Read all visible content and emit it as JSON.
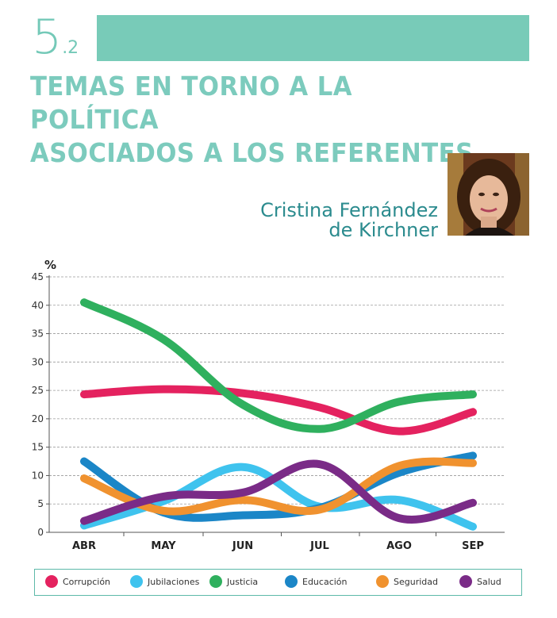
{
  "header": {
    "section_number": "5",
    "section_sub": ".2",
    "title_line1": "TEMAS EN TORNO A LA POLÍTICA",
    "title_line2": "ASOCIADOS A LOS REFERENTES"
  },
  "person": {
    "name_line1": "Cristina Fernández",
    "name_line2": "de Kirchner"
  },
  "chart_data": {
    "type": "line",
    "ylabel": "%",
    "ylim": [
      0,
      45
    ],
    "yticks": [
      0,
      5,
      10,
      15,
      20,
      25,
      30,
      35,
      40,
      45
    ],
    "categories": [
      "ABR",
      "MAY",
      "JUN",
      "JUL",
      "AGO",
      "SEP"
    ],
    "grid": true,
    "legend_position": "bottom",
    "series": [
      {
        "name": "Corrupción",
        "color": "#e4225f",
        "values": [
          24.3,
          25.2,
          24.5,
          22.0,
          17.8,
          21.2
        ]
      },
      {
        "name": "Jubilaciones",
        "color": "#3fc3ee",
        "values": [
          1.2,
          5.5,
          11.5,
          4.5,
          5.7,
          1.0
        ]
      },
      {
        "name": "Justicia",
        "color": "#2fb05e",
        "values": [
          40.5,
          34.0,
          22.5,
          18.2,
          23.0,
          24.3
        ]
      },
      {
        "name": "Educación",
        "color": "#1b86c7",
        "values": [
          12.5,
          3.5,
          3.0,
          4.3,
          10.5,
          13.5
        ]
      },
      {
        "name": "Seguridad",
        "color": "#f0922f",
        "values": [
          9.5,
          3.8,
          5.7,
          4.0,
          11.7,
          12.2
        ]
      },
      {
        "name": "Salud",
        "color": "#7a2b87",
        "values": [
          2.0,
          6.3,
          7.0,
          12.0,
          2.5,
          5.2
        ]
      }
    ]
  }
}
